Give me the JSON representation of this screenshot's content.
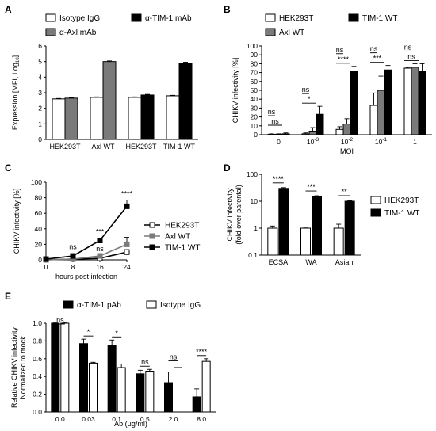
{
  "figure": {
    "colors": {
      "white": "#ffffff",
      "gray": "#7a7a7a",
      "black": "#000000"
    },
    "panels": [
      "A",
      "B",
      "C",
      "D",
      "E"
    ]
  },
  "chart_data": [
    {
      "id": "A",
      "type": "bar",
      "title": "",
      "ylabel": "Expression [MFI, Log10]",
      "ylim": [
        0,
        6
      ],
      "yticks": [
        "0",
        "1",
        "2",
        "3",
        "4",
        "5",
        "6"
      ],
      "groups": [
        {
          "label": "HEK293T",
          "bars": [
            {
              "series": "Isotype IgG",
              "value": 2.6,
              "err": 0.03
            },
            {
              "series": "α-Axl mAb",
              "value": 2.65,
              "err": 0.03
            }
          ]
        },
        {
          "label": "Axl WT",
          "bars": [
            {
              "series": "Isotype IgG",
              "value": 2.7,
              "err": 0.03
            },
            {
              "series": "α-Axl mAb",
              "value": 5.0,
              "err": 0.04
            }
          ]
        },
        {
          "label": "HEK293T",
          "bars": [
            {
              "series": "Isotype IgG",
              "value": 2.7,
              "err": 0.03
            },
            {
              "series": "α-TIM-1 mAb",
              "value": 2.85,
              "err": 0.04
            }
          ]
        },
        {
          "label": "TIM-1 WT",
          "bars": [
            {
              "series": "Isotype IgG",
              "value": 2.8,
              "err": 0.03
            },
            {
              "series": "α-TIM-1 mAb",
              "value": 4.9,
              "err": 0.06
            }
          ]
        }
      ],
      "legend": [
        {
          "name": "Isotype IgG",
          "color": "#ffffff"
        },
        {
          "name": "α-TIM-1 mAb",
          "color": "#000000"
        },
        {
          "name": "α-Axl mAb",
          "color": "#7a7a7a"
        }
      ]
    },
    {
      "id": "B",
      "type": "bar",
      "ylabel": "CHIKV infectivity [%]",
      "xlabel": "MOI",
      "ylim": [
        0,
        100
      ],
      "yticks": [
        "0",
        "10",
        "20",
        "30",
        "40",
        "50",
        "60",
        "70",
        "80",
        "90",
        "100"
      ],
      "categories": [
        "0",
        "10-3",
        "10-2",
        "10-1",
        "1"
      ],
      "series": [
        {
          "name": "HEK293T",
          "color": "#ffffff",
          "values": [
            0.5,
            1,
            6,
            33,
            75
          ],
          "err": [
            0.5,
            1,
            3,
            14,
            1
          ]
        },
        {
          "name": "Axl WT",
          "color": "#7a7a7a",
          "values": [
            0.5,
            4,
            12,
            50,
            76
          ],
          "err": [
            0.5,
            4,
            6,
            16,
            4
          ]
        },
        {
          "name": "TIM-1 WT",
          "color": "#000000",
          "values": [
            1,
            23,
            71,
            73,
            71
          ],
          "err": [
            1,
            9,
            6,
            5,
            9
          ]
        }
      ],
      "significance": [
        [
          "ns",
          "ns"
        ],
        [
          "ns",
          "*"
        ],
        [
          "ns",
          "****"
        ],
        [
          "ns",
          "***"
        ],
        [
          "ns",
          "ns"
        ]
      ]
    },
    {
      "id": "C",
      "type": "line",
      "ylabel": "CHIKV infectivity [%]",
      "xlabel": "hours post infection",
      "xlim": [
        0,
        24
      ],
      "ylim": [
        0,
        100
      ],
      "xticks": [
        "0",
        "8",
        "16",
        "24"
      ],
      "yticks": [
        "0",
        "20",
        "40",
        "60",
        "80",
        "100"
      ],
      "x": [
        0,
        8,
        16,
        24
      ],
      "series": [
        {
          "name": "HEK293T",
          "marker": "square-open",
          "values": [
            0,
            1,
            2,
            10
          ],
          "err": [
            1,
            1,
            1,
            3
          ]
        },
        {
          "name": "Axl WT",
          "marker": "square-gray",
          "values": [
            0,
            1,
            5,
            20
          ],
          "err": [
            1,
            1,
            3,
            9
          ]
        },
        {
          "name": "TIM-1 WT",
          "marker": "square-filled",
          "values": [
            1,
            5,
            25,
            69
          ],
          "err": [
            1,
            1,
            3,
            8
          ]
        }
      ],
      "significance": [
        {
          "x": 8,
          "label": "ns",
          "y": 14
        },
        {
          "x": 16,
          "label": "***",
          "y": 33
        },
        {
          "x": 16,
          "label": "ns",
          "y": 11
        },
        {
          "x": 24,
          "label": "****",
          "y": 82
        }
      ]
    },
    {
      "id": "D",
      "type": "bar",
      "ylabel": "CHIKV infectivity (fold over parental)",
      "scale": "log",
      "ylim": [
        0.1,
        100
      ],
      "yticks": [
        "0.1",
        "1",
        "10",
        "100"
      ],
      "categories": [
        "ECSA",
        "WA",
        "Asian"
      ],
      "series": [
        {
          "name": "HEK293T",
          "color": "#ffffff",
          "values": [
            1,
            1,
            1
          ],
          "err": [
            0.2,
            0.02,
            0.4
          ]
        },
        {
          "name": "TIM-1 WT",
          "color": "#000000",
          "values": [
            30,
            15,
            10
          ],
          "err": [
            2,
            1,
            0.7
          ]
        }
      ],
      "significance": [
        "****",
        "***",
        "**"
      ]
    },
    {
      "id": "E",
      "type": "bar",
      "ylabel": "Relative CHIKV infectivity Normalized to mock",
      "xlabel": "Ab (μg/ml)",
      "ylim": [
        0,
        1.0
      ],
      "yticks": [
        "0.0",
        "0.2",
        "0.4",
        "0.6",
        "0.8",
        "1.0"
      ],
      "categories": [
        "0.0",
        "0.03",
        "0.1",
        "0.5",
        "2.0",
        "8.0"
      ],
      "series": [
        {
          "name": "α-TIM-1 pAb",
          "color": "#000000",
          "values": [
            1.0,
            0.77,
            0.75,
            0.43,
            0.33,
            0.17
          ],
          "err": [
            0.01,
            0.05,
            0.06,
            0.04,
            0.12,
            0.09
          ]
        },
        {
          "name": "Isotype IgG",
          "color": "#ffffff",
          "values": [
            1.0,
            0.55,
            0.5,
            0.46,
            0.5,
            0.57
          ],
          "err": [
            0.01,
            0.01,
            0.04,
            0.02,
            0.04,
            0.03
          ]
        }
      ],
      "significance": [
        "ns",
        "*",
        "*",
        "ns",
        "ns",
        "****"
      ]
    }
  ]
}
